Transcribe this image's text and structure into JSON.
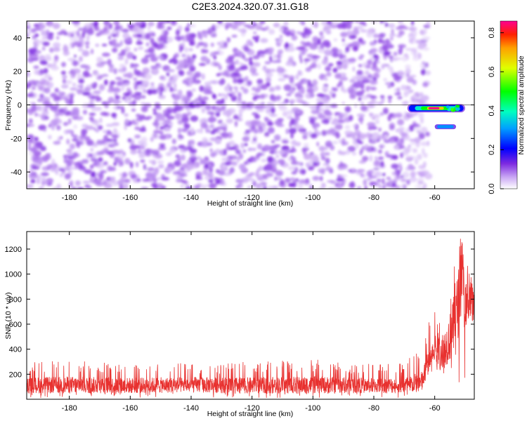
{
  "title": "C2E3.2024.320.07.31.G18",
  "chart_data": [
    {
      "type": "heatmap",
      "xlabel": "Height of straight line (km)",
      "ylabel": "Frequency (Hz)",
      "xlim": [
        -194,
        -47
      ],
      "ylim": [
        -50,
        50
      ],
      "xticks": [
        -180,
        -160,
        -140,
        -120,
        -100,
        -80,
        -60
      ],
      "xtick_labels": [
        "-180",
        "-160",
        "-140",
        "-120",
        "-100",
        "-80",
        "-60"
      ],
      "yticks": [
        -40,
        -20,
        0,
        20,
        40
      ],
      "ytick_labels": [
        "-40",
        "-20",
        "0",
        "20",
        "40"
      ],
      "noise_extent_km": [
        -194,
        -64
      ],
      "noise_amplitude_range": [
        0.0,
        0.12
      ],
      "signal_features": [
        {
          "x_from": -69,
          "x_to": -50,
          "frequency_hz": -2,
          "peak_amplitude": 0.86,
          "peak_x": -60
        },
        {
          "x_from": -60,
          "x_to": -53,
          "frequency_hz": -13,
          "peak_amplitude": 0.3
        }
      ],
      "colorbar": {
        "label": "Normalized spectral amplitude",
        "range": [
          0.0,
          0.86
        ],
        "ticks": [
          0.0,
          0.2,
          0.4,
          0.6,
          0.8
        ],
        "tick_labels": [
          "0.0",
          "0.2",
          "0.4",
          "0.6",
          "0.8"
        ]
      }
    },
    {
      "type": "line",
      "xlabel": "Height of straight line (km)",
      "ylabel": "SNR (10 * v/v)",
      "xlim": [
        -194,
        -47
      ],
      "ylim": [
        0,
        1340
      ],
      "xticks": [
        -180,
        -160,
        -140,
        -120,
        -100,
        -80,
        -60
      ],
      "xtick_labels": [
        "-180",
        "-160",
        "-140",
        "-120",
        "-100",
        "-80",
        "-60"
      ],
      "yticks": [
        200,
        400,
        600,
        800,
        1000,
        1200
      ],
      "ytick_labels": [
        "200",
        "400",
        "600",
        "800",
        "1000",
        "1200"
      ],
      "color": "#e8312f",
      "series": [
        {
          "x": [
            -194,
            -180,
            -160,
            -140,
            -120,
            -100,
            -80,
            -70,
            -64,
            -62,
            -60,
            -58,
            -56,
            -54,
            -52,
            -51,
            -50,
            -48,
            -47
          ],
          "y": [
            110,
            115,
            110,
            115,
            110,
            115,
            110,
            110,
            140,
            310,
            420,
            380,
            440,
            560,
            800,
            1040,
            700,
            800,
            650
          ],
          "y_low": [
            10,
            10,
            10,
            10,
            10,
            10,
            10,
            10,
            40,
            160,
            150,
            150,
            120,
            100,
            100,
            60,
            80,
            100,
            150
          ],
          "y_high": [
            300,
            310,
            290,
            290,
            300,
            320,
            280,
            300,
            420,
            620,
            720,
            760,
            850,
            1100,
            1340,
            1310,
            1180,
            1000,
            900
          ]
        }
      ]
    }
  ]
}
